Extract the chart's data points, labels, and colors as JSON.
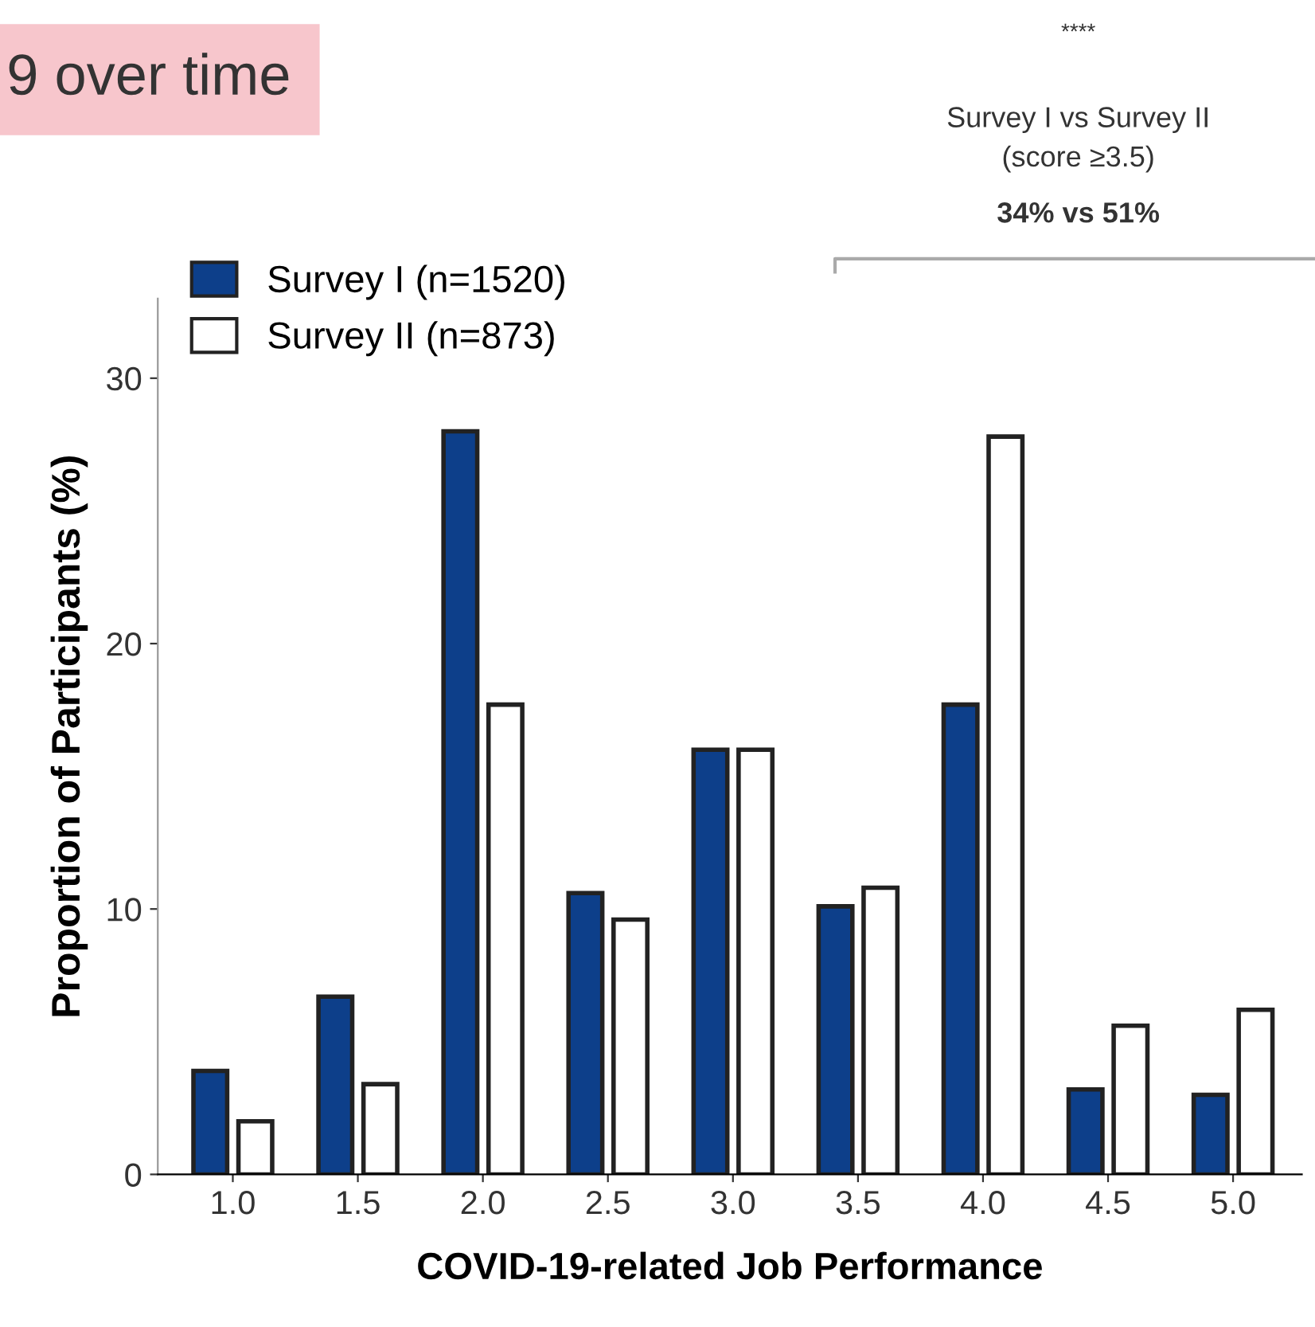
{
  "chart_data": {
    "type": "bar",
    "title": "9 over time",
    "xlabel": "COVID-19-related Job Performance",
    "ylabel": "Proportion of Participants (%)",
    "categories": [
      "1.0",
      "1.5",
      "2.0",
      "2.5",
      "3.0",
      "3.5",
      "4.0",
      "4.5",
      "5.0"
    ],
    "series": [
      {
        "name": "Survey I (n=1520)",
        "color": "#0d3f8a",
        "values": [
          3.9,
          6.7,
          28.0,
          10.6,
          16.0,
          10.1,
          17.7,
          3.2,
          3.0
        ]
      },
      {
        "name": "Survey II (n=873)",
        "color": "#ffffff",
        "values": [
          2.0,
          3.4,
          17.7,
          9.6,
          16.0,
          10.8,
          27.8,
          5.6,
          6.2
        ]
      }
    ],
    "ylim": [
      0,
      33
    ],
    "yticks": [
      0,
      10,
      20,
      30
    ],
    "grid": false,
    "legend": "top left",
    "annotations": [
      "****",
      "Survey I vs Survey II\n(score ≥3.5)",
      "34% vs 51%"
    ]
  }
}
